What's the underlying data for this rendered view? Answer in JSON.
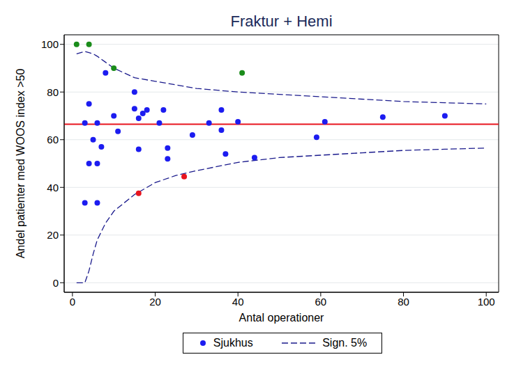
{
  "chart_data": {
    "type": "scatter",
    "title": "Fraktur + Hemi",
    "x_label": "Antal operationer",
    "y_label": "Andel patienter med WOOS index >50",
    "xlim": [
      -2,
      103
    ],
    "ylim": [
      -4,
      104
    ],
    "xticks": [
      0,
      20,
      40,
      60,
      80,
      100
    ],
    "yticks": [
      0,
      20,
      40,
      60,
      80,
      100
    ],
    "grid": true,
    "reference_line": 66.5,
    "reference_color": "#e8141e",
    "series": [
      {
        "name": "Sjukhus",
        "type": "scatter",
        "marker": "circle",
        "color": "#1c1cf0",
        "x": [
          1,
          4,
          10,
          41,
          16,
          27,
          8,
          4,
          15,
          15,
          10,
          22,
          36,
          18,
          17,
          16,
          3,
          6,
          21,
          33,
          40,
          61,
          75,
          90,
          11,
          36,
          5,
          29,
          59,
          7,
          16,
          23,
          37,
          23,
          44,
          4,
          6,
          3,
          6
        ],
        "values": [
          100,
          100,
          90,
          88,
          37.5,
          44.5,
          88,
          75,
          80,
          73,
          70,
          72.5,
          72.5,
          72.5,
          71,
          69,
          67,
          67,
          67,
          67,
          67.5,
          67.5,
          69.5,
          70,
          63.5,
          64,
          60,
          62,
          61,
          57,
          56,
          56.5,
          54,
          52,
          52.5,
          50,
          50,
          33.5,
          33.5
        ],
        "colors": [
          "#1a8c1a",
          "#1a8c1a",
          "#1a8c1a",
          "#1a8c1a",
          "#e8141e",
          "#e8141e",
          "#1c1cf0",
          "#1c1cf0",
          "#1c1cf0",
          "#1c1cf0",
          "#1c1cf0",
          "#1c1cf0",
          "#1c1cf0",
          "#1c1cf0",
          "#1c1cf0",
          "#1c1cf0",
          "#1c1cf0",
          "#1c1cf0",
          "#1c1cf0",
          "#1c1cf0",
          "#1c1cf0",
          "#1c1cf0",
          "#1c1cf0",
          "#1c1cf0",
          "#1c1cf0",
          "#1c1cf0",
          "#1c1cf0",
          "#1c1cf0",
          "#1c1cf0",
          "#1c1cf0",
          "#1c1cf0",
          "#1c1cf0",
          "#1c1cf0",
          "#1c1cf0",
          "#1c1cf0",
          "#1c1cf0",
          "#1c1cf0",
          "#1c1cf0",
          "#1c1cf0"
        ]
      },
      {
        "name": "Sign. 5%",
        "type": "line",
        "line_style": "dashed",
        "color": "#1a1a8c",
        "x": [
          1,
          3,
          4,
          5,
          6,
          8,
          10,
          15,
          20,
          25,
          30,
          40,
          50,
          60,
          70,
          80,
          90,
          100
        ],
        "upper": [
          96,
          97,
          96.5,
          96,
          95,
          92.5,
          90,
          86,
          84.5,
          83,
          81.5,
          80,
          79,
          78,
          77,
          76,
          75.5,
          75
        ],
        "lower": [
          0,
          0,
          5,
          12,
          18,
          25,
          30,
          37,
          42,
          45,
          47,
          50.5,
          52.5,
          53.5,
          54.5,
          55.5,
          56,
          56.5
        ]
      }
    ]
  }
}
